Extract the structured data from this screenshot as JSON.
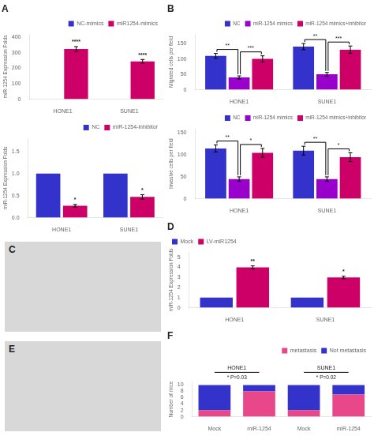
{
  "chart_data": [
    {
      "type": "bar",
      "title": "A",
      "ylabel": "miR-1254 Expression Folds",
      "categories": [
        "HONE1",
        "SUNE1"
      ],
      "series": [
        {
          "name": "NC-mimics",
          "color": "#3333cc",
          "values": [
            1,
            1
          ],
          "errors": [
            0,
            0
          ]
        },
        {
          "name": "miR1254-mimics",
          "color": "#cc0066",
          "values": [
            325,
            245
          ],
          "errors": [
            15,
            12
          ]
        }
      ],
      "ylim": [
        0,
        420
      ],
      "yticks": [
        0,
        100,
        200,
        300,
        400
      ],
      "grid": false,
      "legend": "upper right",
      "annotations": [
        {
          "text": "****",
          "category": "HONE1",
          "series": "miR1254-mimics"
        },
        {
          "text": "****",
          "category": "SUNE1",
          "series": "miR1254-mimics"
        }
      ]
    },
    {
      "type": "bar",
      "ylabel": "miR-1254 Expression Folds",
      "categories": [
        "HONE1",
        "SUNE1"
      ],
      "series": [
        {
          "name": "NC",
          "color": "#3333cc",
          "values": [
            1.0,
            1.0
          ],
          "errors": [
            0,
            0
          ]
        },
        {
          "name": "miR-1254-inhibitor",
          "color": "#cc0066",
          "values": [
            0.27,
            0.47
          ],
          "errors": [
            0.03,
            0.05
          ]
        }
      ],
      "ylim": [
        0,
        1.8
      ],
      "yticks": [
        {
          "value": 0,
          "label": "0.0"
        },
        0.5,
        {
          "value": 1,
          "label": "1.0"
        },
        1.5
      ],
      "grid": false,
      "legend": "upper right",
      "annotations": [
        {
          "text": "*",
          "category": "HONE1",
          "series": "miR-1254-inhibitor"
        },
        {
          "text": "*",
          "category": "SUNE1",
          "series": "miR-1254-inhibitor"
        }
      ]
    },
    {
      "type": "bar",
      "title": "B",
      "ylabel": "Migrated cells per field",
      "categories": [
        "HONE1",
        "SUNE1"
      ],
      "series": [
        {
          "name": "NC",
          "color": "#3333cc",
          "values": [
            110,
            140
          ],
          "errors": [
            8,
            10
          ]
        },
        {
          "name": "miR-1254 mimics",
          "color": "#9900cc",
          "values": [
            40,
            50
          ],
          "errors": [
            5,
            6
          ]
        },
        {
          "name": "miR-1254 mimics+inhibitor",
          "color": "#cc0066",
          "values": [
            100,
            130
          ],
          "errors": [
            10,
            12
          ]
        }
      ],
      "ylim": [
        0,
        180
      ],
      "yticks": [
        0,
        50,
        100,
        150
      ],
      "grid": false,
      "legend": "upper right",
      "annotations": [
        {
          "text": "**",
          "category": "HONE1",
          "between": [
            "NC",
            "miR-1254 mimics"
          ]
        },
        {
          "text": "**",
          "category": "SUNE1",
          "between": [
            "NC",
            "miR-1254 mimics"
          ]
        },
        {
          "text": "***",
          "category": "HONE1",
          "between": [
            "miR-1254 mimics",
            "miR-1254 mimics+inhibitor"
          ]
        },
        {
          "text": "***",
          "category": "SUNE1",
          "between": [
            "miR-1254 mimics",
            "miR-1254 mimics+inhibitor"
          ]
        }
      ]
    },
    {
      "type": "bar",
      "ylabel": "Invasive cells per field",
      "categories": [
        "HONE1",
        "SUNE1"
      ],
      "series": [
        {
          "name": "NC",
          "color": "#3333cc",
          "values": [
            115,
            110
          ],
          "errors": [
            8,
            10
          ]
        },
        {
          "name": "miR-1254 mimics",
          "color": "#9900cc",
          "values": [
            45,
            45
          ],
          "errors": [
            5,
            5
          ]
        },
        {
          "name": "miR-1254 mimics+inhibitor",
          "color": "#cc0066",
          "values": [
            105,
            95
          ],
          "errors": [
            10,
            10
          ]
        }
      ],
      "ylim": [
        0,
        160
      ],
      "yticks": [
        0,
        50,
        100,
        150
      ],
      "grid": false,
      "legend": "upper right",
      "annotations": [
        {
          "text": "**",
          "category": "HONE1",
          "between": [
            "NC",
            "miR-1254 mimics"
          ]
        },
        {
          "text": "**",
          "category": "SUNE1",
          "between": [
            "NC",
            "miR-1254 mimics"
          ]
        },
        {
          "text": "*",
          "category": "HONE1",
          "between": [
            "miR-1254 mimics",
            "miR-1254 mimics+inhibitor"
          ]
        },
        {
          "text": "*",
          "category": "SUNE1",
          "between": [
            "miR-1254 mimics",
            "miR-1254 mimics+inhibitor"
          ]
        }
      ]
    },
    {
      "type": "image",
      "title": "C"
    },
    {
      "type": "bar",
      "title": "D",
      "ylabel": "miR-1254 Expression Folds",
      "categories": [
        "HONE1",
        "SUNE1"
      ],
      "series": [
        {
          "name": "Mock",
          "color": "#3333cc",
          "values": [
            1.0,
            1.0
          ],
          "errors": [
            0,
            0
          ]
        },
        {
          "name": "LV-miR1254",
          "color": "#cc0066",
          "values": [
            4.0,
            3.0
          ],
          "errors": [
            0.15,
            0.12
          ]
        }
      ],
      "ylim": [
        0,
        5.5
      ],
      "yticks": [
        0,
        1,
        2,
        3,
        4,
        5
      ],
      "grid": false,
      "legend": "upper left",
      "annotations": [
        {
          "text": "**",
          "category": "HONE1",
          "series": "LV-miR1254"
        },
        {
          "text": "*",
          "category": "SUNE1",
          "series": "LV-miR1254"
        }
      ]
    },
    {
      "type": "image",
      "title": "E"
    },
    {
      "type": "bar",
      "stacked": true,
      "title": "F",
      "ylabel": "Number of mice",
      "categories": [
        "Mock",
        "miR-1254",
        "Mock",
        "miR-1254"
      ],
      "series": [
        {
          "name": "metastasis",
          "color": "#e8488a",
          "values": [
            2,
            8,
            2,
            7
          ]
        },
        {
          "name": "Not metastasis",
          "color": "#3333cc",
          "values": [
            8,
            2,
            8,
            3
          ]
        }
      ],
      "ylim": [
        0,
        11
      ],
      "yticks": [
        0,
        2,
        4,
        6,
        8,
        10
      ],
      "grid": false,
      "legend": "upper right",
      "groups": [
        {
          "name": "HONE1",
          "categories": [
            "Mock",
            "miR-1254"
          ],
          "annotation": "* P=0.03"
        },
        {
          "name": "SUNE1",
          "categories": [
            "Mock",
            "miR-1254"
          ],
          "annotation": "* P=0.02"
        }
      ]
    }
  ]
}
